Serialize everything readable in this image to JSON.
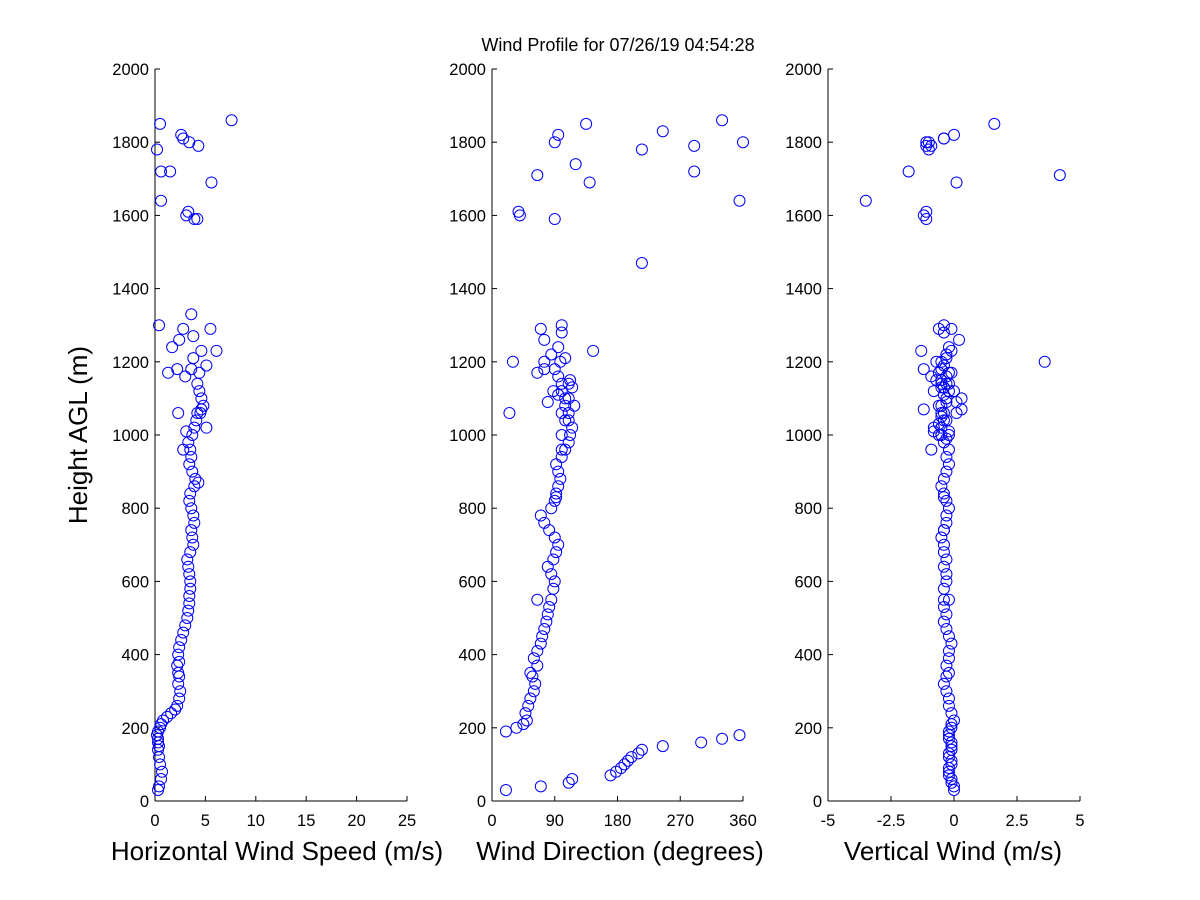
{
  "title": "Wind Profile for  07/26/19 04:54:28",
  "chart_data": [
    {
      "type": "scatter",
      "xlabel": "Horizontal Wind Speed (m/s)",
      "ylabel": "Height AGL (m)",
      "xlim": [
        0,
        25
      ],
      "ylim": [
        0,
        2000
      ],
      "xticks": [
        "0",
        "5",
        "10",
        "15",
        "20",
        "25"
      ],
      "yticks": [
        "0",
        "200",
        "400",
        "600",
        "800",
        "1000",
        "1200",
        "1400",
        "1600",
        "1800",
        "2000"
      ],
      "marker": "circle",
      "color": "#0000ff",
      "x": [
        0.3,
        0.4,
        0.6,
        0.7,
        0.5,
        0.4,
        0.3,
        0.4,
        0.3,
        0.3,
        0.2,
        0.3,
        0.5,
        0.6,
        0.8,
        1.2,
        1.6,
        2.0,
        2.2,
        2.4,
        2.5,
        2.3,
        2.4,
        2.3,
        2.2,
        2.4,
        2.3,
        2.4,
        2.6,
        2.8,
        3.0,
        3.2,
        3.3,
        3.4,
        3.4,
        3.5,
        3.5,
        3.4,
        3.3,
        3.2,
        3.5,
        3.8,
        3.7,
        3.6,
        3.9,
        3.8,
        3.6,
        3.4,
        3.5,
        3.9,
        4.3,
        4.0,
        3.7,
        3.4,
        3.6,
        3.5,
        3.3,
        3.7,
        3.9,
        4.1,
        4.5,
        4.8,
        4.6,
        4.4,
        4.2,
        3.0,
        4.4,
        3.6,
        5.1,
        3.8,
        4.6,
        2.4,
        3.8,
        5.5,
        0.4,
        4.6,
        4.2,
        5.1,
        1.3,
        2.2,
        2.8,
        1.7,
        3.6,
        2.8,
        6.1,
        2.3,
        3.1,
        4.2,
        0.6,
        3.1,
        3.3,
        3.9,
        5.6,
        0.6,
        0.2,
        3.4,
        2.8,
        2.6,
        4.3,
        1.5,
        7.6,
        0.5
      ],
      "y": [
        30,
        40,
        60,
        80,
        100,
        120,
        140,
        150,
        160,
        170,
        180,
        190,
        200,
        210,
        220,
        230,
        240,
        250,
        260,
        280,
        300,
        320,
        340,
        350,
        370,
        380,
        400,
        420,
        440,
        460,
        480,
        500,
        520,
        540,
        560,
        580,
        600,
        620,
        640,
        660,
        680,
        700,
        720,
        740,
        760,
        780,
        800,
        820,
        840,
        860,
        870,
        880,
        900,
        920,
        940,
        960,
        980,
        1000,
        1020,
        1040,
        1060,
        1080,
        1100,
        1120,
        1140,
        1160,
        1170,
        1180,
        1190,
        1210,
        1230,
        1260,
        1270,
        1290,
        1300,
        1070,
        1060,
        1020,
        1170,
        1180,
        1290,
        1240,
        1330,
        960,
        1230,
        1060,
        1010,
        1590,
        1640,
        1600,
        1610,
        1590,
        1690,
        1720,
        1780,
        1800,
        1810,
        1820,
        1790,
        1720,
        1860,
        1850
      ]
    },
    {
      "type": "scatter",
      "xlabel": "Wind Direction (degrees)",
      "ylabel": "",
      "xlim": [
        0,
        360
      ],
      "ylim": [
        0,
        2000
      ],
      "xticks": [
        "0",
        "90",
        "180",
        "270",
        "360"
      ],
      "yticks": [
        "0",
        "200",
        "400",
        "600",
        "800",
        "1000",
        "1200",
        "1400",
        "1600",
        "1800",
        "2000"
      ],
      "marker": "circle",
      "color": "#0000ff",
      "x": [
        20,
        70,
        110,
        115,
        170,
        178,
        185,
        190,
        195,
        200,
        210,
        215,
        245,
        300,
        330,
        355,
        20,
        35,
        45,
        50,
        48,
        52,
        55,
        60,
        62,
        58,
        55,
        65,
        60,
        65,
        70,
        72,
        75,
        78,
        80,
        82,
        85,
        88,
        90,
        85,
        80,
        88,
        92,
        95,
        90,
        82,
        75,
        70,
        85,
        90,
        92,
        95,
        98,
        95,
        92,
        100,
        105,
        110,
        112,
        115,
        105,
        110,
        118,
        105,
        100,
        100,
        95,
        90,
        98,
        105,
        115,
        112,
        110,
        100,
        100,
        105,
        110,
        80,
        65,
        88,
        95,
        100,
        75,
        110,
        92,
        25,
        75,
        65,
        30,
        75,
        70,
        100,
        100,
        85,
        95,
        145,
        215,
        355,
        140,
        65,
        120,
        290,
        40,
        38,
        90,
        215,
        90,
        95,
        245,
        330,
        135,
        290,
        360
      ],
      "y": [
        30,
        40,
        50,
        60,
        70,
        80,
        90,
        100,
        110,
        120,
        130,
        140,
        150,
        160,
        170,
        180,
        190,
        200,
        210,
        220,
        240,
        260,
        280,
        300,
        320,
        340,
        350,
        370,
        390,
        410,
        430,
        450,
        470,
        490,
        510,
        530,
        550,
        580,
        600,
        620,
        640,
        660,
        680,
        700,
        720,
        740,
        760,
        780,
        800,
        820,
        840,
        860,
        880,
        900,
        920,
        940,
        960,
        980,
        1000,
        1020,
        1040,
        1060,
        1080,
        1100,
        1120,
        1140,
        1160,
        1180,
        1200,
        1210,
        1130,
        1150,
        1140,
        1000,
        1060,
        1080,
        1100,
        1090,
        1170,
        1120,
        1110,
        960,
        1180,
        1040,
        830,
        1060,
        1200,
        550,
        1200,
        1260,
        1290,
        1280,
        1300,
        1220,
        1240,
        1230,
        1470,
        1640,
        1690,
        1710,
        1740,
        1790,
        1600,
        1610,
        1590,
        1780,
        1800,
        1820,
        1830,
        1860,
        1850,
        1720,
        1800
      ]
    },
    {
      "type": "scatter",
      "xlabel": "Vertical Wind (m/s)",
      "ylabel": "",
      "xlim": [
        -5,
        5
      ],
      "ylim": [
        0,
        2000
      ],
      "xticks": [
        "-5",
        "-2.5",
        "0",
        "2.5",
        "5"
      ],
      "yticks": [
        "0",
        "200",
        "400",
        "600",
        "800",
        "1000",
        "1200",
        "1400",
        "1600",
        "1800",
        "2000"
      ],
      "marker": "circle",
      "color": "#0000ff",
      "x": [
        0.0,
        0.0,
        -0.1,
        -0.1,
        -0.2,
        -0.2,
        -0.2,
        -0.1,
        -0.1,
        -0.2,
        -0.2,
        -0.1,
        -0.1,
        -0.1,
        -0.2,
        -0.2,
        -0.2,
        -0.1,
        -0.1,
        0.0,
        -0.1,
        -0.2,
        -0.2,
        -0.3,
        -0.4,
        -0.3,
        -0.2,
        -0.3,
        -0.2,
        -0.2,
        -0.1,
        -0.2,
        -0.3,
        -0.4,
        -0.3,
        -0.4,
        -0.4,
        -0.4,
        -0.3,
        -0.3,
        -0.4,
        -0.3,
        -0.4,
        -0.4,
        -0.5,
        -0.4,
        -0.3,
        -0.3,
        -0.2,
        -0.3,
        -0.4,
        -0.5,
        -0.4,
        -0.3,
        -0.2,
        -0.3,
        -0.2,
        -0.4,
        -0.6,
        -0.8,
        -0.4,
        -0.5,
        -0.6,
        -0.3,
        -0.2,
        -0.3,
        -0.9,
        -0.5,
        -0.7,
        -0.3,
        -0.5,
        -0.5,
        -0.2,
        -0.5,
        0.1,
        -0.5,
        0.3,
        -0.3,
        -0.1,
        0.0,
        -0.4,
        -0.9,
        -1.2,
        -0.3,
        -0.4,
        -0.4,
        -0.5,
        -0.2,
        0.2,
        -0.6,
        -0.4,
        -0.4,
        -0.3,
        -0.2,
        -0.1,
        -0.2,
        -0.4,
        -0.6,
        -0.5,
        -0.2,
        -0.5,
        -0.8,
        -0.7,
        -0.3,
        -0.4,
        -0.5,
        -0.6,
        -0.8,
        -1.2,
        -1.3,
        -0.4,
        3.6,
        -0.2,
        -0.3,
        0.3,
        0.1,
        -0.1,
        -1.1,
        -1.2,
        -1.1,
        -3.5,
        -1.0,
        -1.1,
        -1.0,
        -0.4,
        -0.9,
        -1.1,
        -0.4,
        0.0,
        -1.8,
        0.1,
        4.2,
        1.6
      ],
      "y": [
        30,
        40,
        50,
        60,
        70,
        80,
        90,
        100,
        110,
        120,
        130,
        140,
        150,
        160,
        170,
        180,
        190,
        200,
        210,
        220,
        240,
        260,
        280,
        300,
        320,
        340,
        350,
        370,
        390,
        410,
        430,
        450,
        470,
        490,
        510,
        530,
        550,
        580,
        600,
        620,
        640,
        660,
        680,
        700,
        720,
        740,
        760,
        780,
        800,
        820,
        840,
        860,
        880,
        900,
        920,
        940,
        960,
        980,
        1000,
        1020,
        1040,
        1060,
        1080,
        1100,
        1120,
        1140,
        1160,
        1180,
        1200,
        1210,
        1130,
        1150,
        1140,
        1000,
        1060,
        1080,
        1100,
        1090,
        1170,
        1120,
        1110,
        960,
        1180,
        1040,
        830,
        1060,
        1200,
        550,
        1260,
        1290,
        1280,
        1300,
        1220,
        1240,
        1230,
        1170,
        1190,
        1030,
        1020,
        1010,
        1050,
        1120,
        1150,
        1160,
        1130,
        1140,
        1170,
        1010,
        1070,
        1230,
        740,
        1200,
        1000,
        990,
        1070,
        1090,
        1290,
        1590,
        1600,
        1610,
        1640,
        1780,
        1790,
        1800,
        1810,
        1790,
        1800,
        1810,
        1820,
        1720,
        1690,
        1710,
        1850
      ]
    }
  ]
}
